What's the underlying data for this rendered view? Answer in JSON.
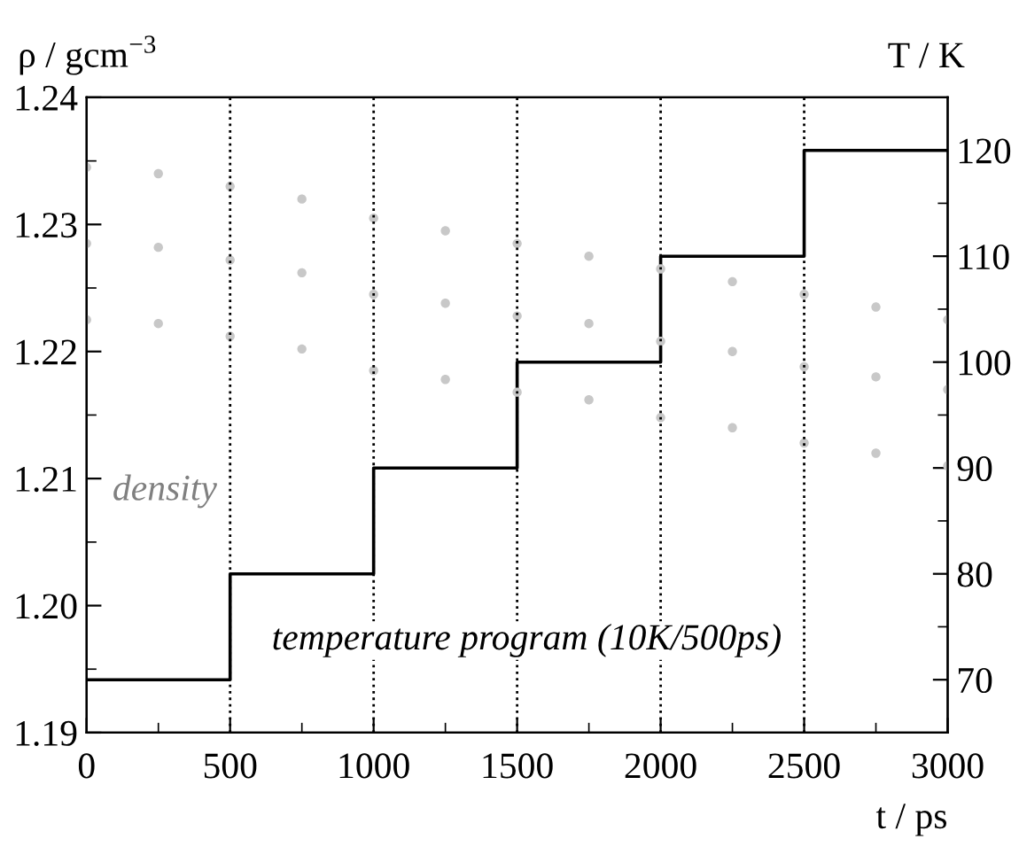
{
  "chart_data": {
    "type": "scatter",
    "xlabel": "t / ps",
    "ylabel": "ρ / gcm$^{−3}$",
    "y2label": "T / K",
    "x": [
      0,
      250,
      500,
      750,
      1000,
      1250,
      1500,
      1750,
      2000,
      2250,
      2500,
      2750,
      3000,
      0,
      250,
      500,
      750,
      1000,
      1250,
      1500,
      1750,
      2000,
      2250,
      2500,
      2750,
      3000,
      0,
      250,
      500,
      750,
      1000,
      1250,
      1500,
      1750,
      2000,
      2250,
      2500,
      2750,
      3000
    ],
    "series": [
      {
        "color": "#c8c8c8",
        "marker": "circle",
        "values": [
          1.2285,
          1.2282,
          1.2272,
          1.2262,
          1.2245,
          1.2238,
          1.2228,
          1.2222,
          1.2208,
          1.22,
          1.2188,
          1.218,
          1.217,
          1.2345,
          1.234,
          1.233,
          1.232,
          1.2305,
          1.2295,
          1.2285,
          1.2275,
          1.2265,
          1.2255,
          1.2245,
          1.2235,
          1.2225,
          1.2225,
          1.2222,
          1.2212,
          1.2202,
          1.2185,
          1.2178,
          1.2168,
          1.2162,
          1.2148,
          1.214,
          1.2128,
          1.212,
          1.211
        ]
      },
      {
        "type": "step",
        "axis": "y2",
        "color": "#000000",
        "line_style": "solid",
        "x": [
          0,
          500,
          1000,
          1500,
          2000,
          2500,
          3000
        ],
        "values": [
          70,
          80,
          90,
          100,
          110,
          120,
          120
        ]
      }
    ],
    "xlim": [
      0,
      3000
    ],
    "xticks": [
      0,
      500,
      1000,
      1500,
      2000,
      2500,
      3000
    ],
    "ylim": [
      1.19,
      1.24
    ],
    "yticks": [
      {
        "value": 1.19,
        "label": "1.19"
      },
      {
        "value": 1.2,
        "label": "1.20"
      },
      {
        "value": 1.21,
        "label": "1.21"
      },
      {
        "value": 1.22,
        "label": "1.22"
      },
      {
        "value": 1.23,
        "label": "1.23"
      },
      {
        "value": 1.24,
        "label": "1.24"
      }
    ],
    "y2lim": [
      65,
      125
    ],
    "y2ticks": [
      70,
      80,
      90,
      100,
      110,
      120
    ],
    "ref_lines": [
      {
        "axis": "x",
        "value": 500,
        "color": "#000000",
        "line_style": "dotted"
      },
      {
        "axis": "x",
        "value": 1000,
        "color": "#000000",
        "line_style": "dotted"
      },
      {
        "axis": "x",
        "value": 1500,
        "color": "#000000",
        "line_style": "dotted"
      },
      {
        "axis": "x",
        "value": 2000,
        "color": "#000000",
        "line_style": "dotted"
      },
      {
        "axis": "x",
        "value": 2500,
        "color": "#000000",
        "line_style": "dotted"
      }
    ],
    "annotations": [
      "density",
      "temperature program (10K/500ps)"
    ],
    "grid": false,
    "legend": false
  }
}
